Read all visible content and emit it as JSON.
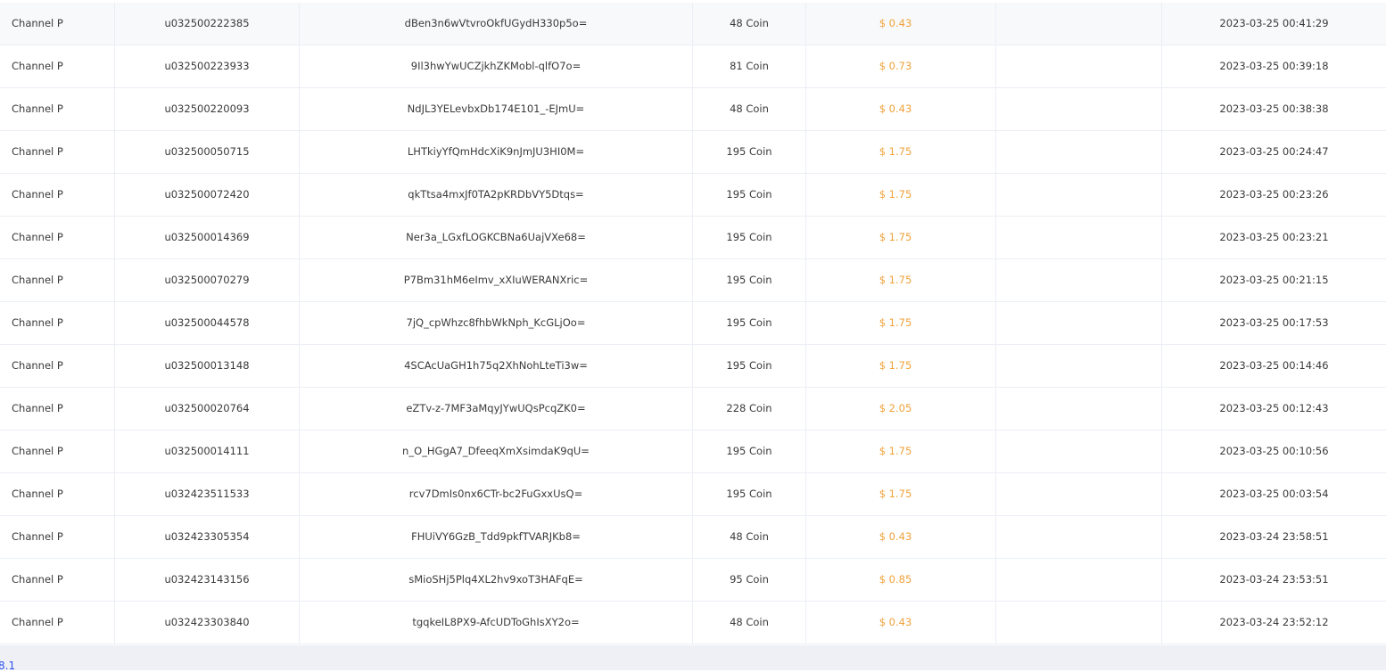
{
  "table": {
    "rows": [
      {
        "channel": "Channel P",
        "user_id": "u032500222385",
        "token": "dBen3n6wVtvroOkfUGydH330p5o=",
        "amount": "48 Coin",
        "price": "$ 0.43",
        "time": "2023-03-25 00:41:29"
      },
      {
        "channel": "Channel P",
        "user_id": "u032500223933",
        "token": "9Il3hwYwUCZjkhZKMobl-qlfO7o=",
        "amount": "81 Coin",
        "price": "$ 0.73",
        "time": "2023-03-25 00:39:18"
      },
      {
        "channel": "Channel P",
        "user_id": "u032500220093",
        "token": "NdJL3YELevbxDb174E101_-EJmU=",
        "amount": "48 Coin",
        "price": "$ 0.43",
        "time": "2023-03-25 00:38:38"
      },
      {
        "channel": "Channel P",
        "user_id": "u032500050715",
        "token": "LHTkiyYfQmHdcXiK9nJmJU3HI0M=",
        "amount": "195 Coin",
        "price": "$ 1.75",
        "time": "2023-03-25 00:24:47"
      },
      {
        "channel": "Channel P",
        "user_id": "u032500072420",
        "token": "qkTtsa4mxJf0TA2pKRDbVY5Dtqs=",
        "amount": "195 Coin",
        "price": "$ 1.75",
        "time": "2023-03-25 00:23:26"
      },
      {
        "channel": "Channel P",
        "user_id": "u032500014369",
        "token": "Ner3a_LGxfLOGKCBNa6UajVXe68=",
        "amount": "195 Coin",
        "price": "$ 1.75",
        "time": "2023-03-25 00:23:21"
      },
      {
        "channel": "Channel P",
        "user_id": "u032500070279",
        "token": "P7Bm31hM6eImv_xXIuWERANXric=",
        "amount": "195 Coin",
        "price": "$ 1.75",
        "time": "2023-03-25 00:21:15"
      },
      {
        "channel": "Channel P",
        "user_id": "u032500044578",
        "token": "7jQ_cpWhzc8fhbWkNph_KcGLjOo=",
        "amount": "195 Coin",
        "price": "$ 1.75",
        "time": "2023-03-25 00:17:53"
      },
      {
        "channel": "Channel P",
        "user_id": "u032500013148",
        "token": "4SCAcUaGH1h75q2XhNohLteTi3w=",
        "amount": "195 Coin",
        "price": "$ 1.75",
        "time": "2023-03-25 00:14:46"
      },
      {
        "channel": "Channel P",
        "user_id": "u032500020764",
        "token": "eZTv-z-7MF3aMqyJYwUQsPcqZK0=",
        "amount": "228 Coin",
        "price": "$ 2.05",
        "time": "2023-03-25 00:12:43"
      },
      {
        "channel": "Channel P",
        "user_id": "u032500014111",
        "token": "n_O_HGgA7_DfeeqXmXsimdaK9qU=",
        "amount": "195 Coin",
        "price": "$ 1.75",
        "time": "2023-03-25 00:10:56"
      },
      {
        "channel": "Channel P",
        "user_id": "u032423511533",
        "token": "rcv7DmIs0nx6CTr-bc2FuGxxUsQ=",
        "amount": "195 Coin",
        "price": "$ 1.75",
        "time": "2023-03-25 00:03:54"
      },
      {
        "channel": "Channel P",
        "user_id": "u032423305354",
        "token": "FHUiVY6GzB_Tdd9pkfTVARJKb8=",
        "amount": "48 Coin",
        "price": "$ 0.43",
        "time": "2023-03-24 23:58:51"
      },
      {
        "channel": "Channel P",
        "user_id": "u032423143156",
        "token": "sMioSHj5Plq4XL2hv9xoT3HAFqE=",
        "amount": "95 Coin",
        "price": "$ 0.85",
        "time": "2023-03-24 23:53:51"
      },
      {
        "channel": "Channel P",
        "user_id": "u032423303840",
        "token": "tgqkeIL8PX9-AfcUDToGhIsXY2o=",
        "amount": "48 Coin",
        "price": "$ 0.43",
        "time": "2023-03-24 23:52:12"
      }
    ]
  },
  "footer": {
    "text": "8.1"
  }
}
